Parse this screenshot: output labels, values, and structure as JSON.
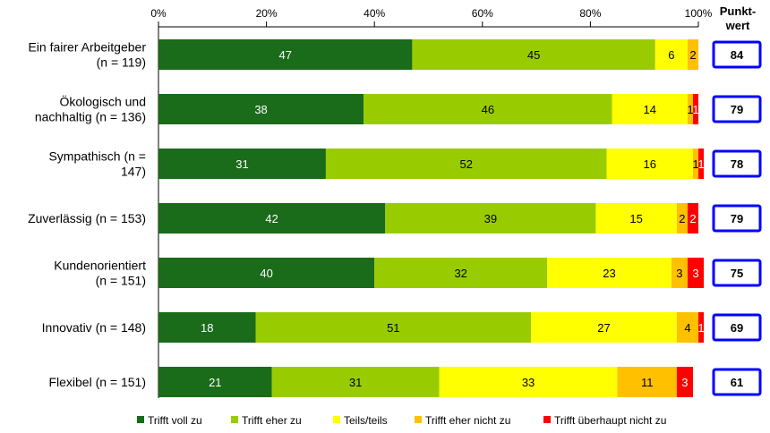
{
  "chart_data": {
    "type": "bar",
    "orientation": "horizontal",
    "stacked": true,
    "xlim": [
      0,
      100
    ],
    "x_ticks": [
      "0%",
      "20%",
      "40%",
      "60%",
      "80%",
      "100%"
    ],
    "categories": [
      [
        "Ein fairer Arbeitgeber",
        "(n = 119)"
      ],
      [
        "Ökologisch und",
        "nachhaltig (n = 136)"
      ],
      [
        "Sympathisch (n =",
        "147)"
      ],
      [
        "Zuverlässig (n = 153)"
      ],
      [
        "Kundenorientiert",
        "(n = 151)"
      ],
      [
        "Innovativ (n = 148)"
      ],
      [
        "Flexibel (n = 151)"
      ]
    ],
    "series": [
      {
        "name": "Trifft voll zu",
        "color": "#1a6b1a",
        "label_color": "#ffffff",
        "values": [
          47,
          38,
          31,
          42,
          40,
          18,
          21
        ]
      },
      {
        "name": "Trifft eher zu",
        "color": "#99cc00",
        "label_color": "#000000",
        "values": [
          45,
          46,
          52,
          39,
          32,
          51,
          31
        ]
      },
      {
        "name": "Teils/teils",
        "color": "#ffff00",
        "label_color": "#000000",
        "values": [
          6,
          14,
          16,
          15,
          23,
          27,
          33
        ]
      },
      {
        "name": "Trifft eher nicht zu",
        "color": "#ffc000",
        "label_color": "#000000",
        "values": [
          2,
          1,
          1,
          2,
          3,
          4,
          11
        ]
      },
      {
        "name": "Trifft überhaupt nicht zu",
        "color": "#ff0000",
        "label_color": "#ffffff",
        "values": [
          0,
          1,
          1,
          2,
          3,
          1,
          3
        ]
      }
    ],
    "score_header": [
      "Punkt-",
      "wert"
    ],
    "scores": [
      84,
      79,
      78,
      79,
      75,
      69,
      61
    ],
    "score_box_color": "#0000ff",
    "grid": false,
    "legend_position": "bottom"
  }
}
